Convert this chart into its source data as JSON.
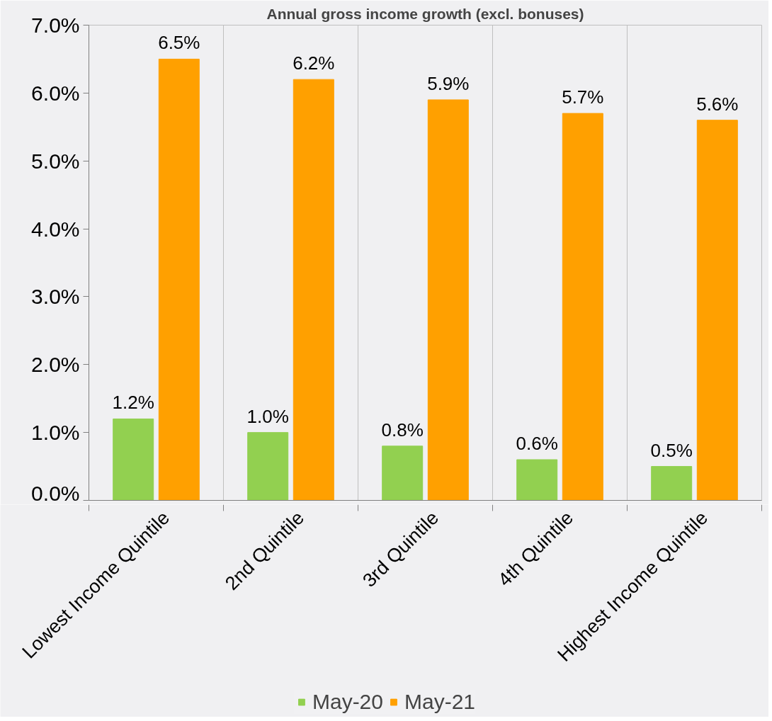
{
  "chart_data": {
    "type": "bar",
    "title": "Annual gross income growth (excl. bonuses)",
    "categories": [
      "Lowest Income Quintile",
      "2nd Quintile",
      "3rd Quintile",
      "4th Quintile",
      "Highest Income Quintile"
    ],
    "series": [
      {
        "name": "May-20",
        "color": "#92d050",
        "values": [
          1.2,
          1.0,
          0.8,
          0.6,
          0.5
        ],
        "value_labels": [
          "1.2%",
          "1.0%",
          "0.8%",
          "0.6%",
          "0.5%"
        ]
      },
      {
        "name": "May-21",
        "color": "#ffa000",
        "values": [
          6.5,
          6.2,
          5.9,
          5.7,
          5.6
        ],
        "value_labels": [
          "6.5%",
          "6.2%",
          "5.9%",
          "5.7%",
          "5.6%"
        ]
      }
    ],
    "ylim": [
      0,
      7
    ],
    "yticks": [
      {
        "value": 0,
        "label": "0.0%"
      },
      {
        "value": 1,
        "label": "1.0%"
      },
      {
        "value": 2,
        "label": "2.0%"
      },
      {
        "value": 3,
        "label": "3.0%"
      },
      {
        "value": 4,
        "label": "4.0%"
      },
      {
        "value": 5,
        "label": "5.0%"
      },
      {
        "value": 6,
        "label": "6.0%"
      },
      {
        "value": 7,
        "label": "7.0%"
      }
    ],
    "grid": "x",
    "legend": "bottom"
  }
}
